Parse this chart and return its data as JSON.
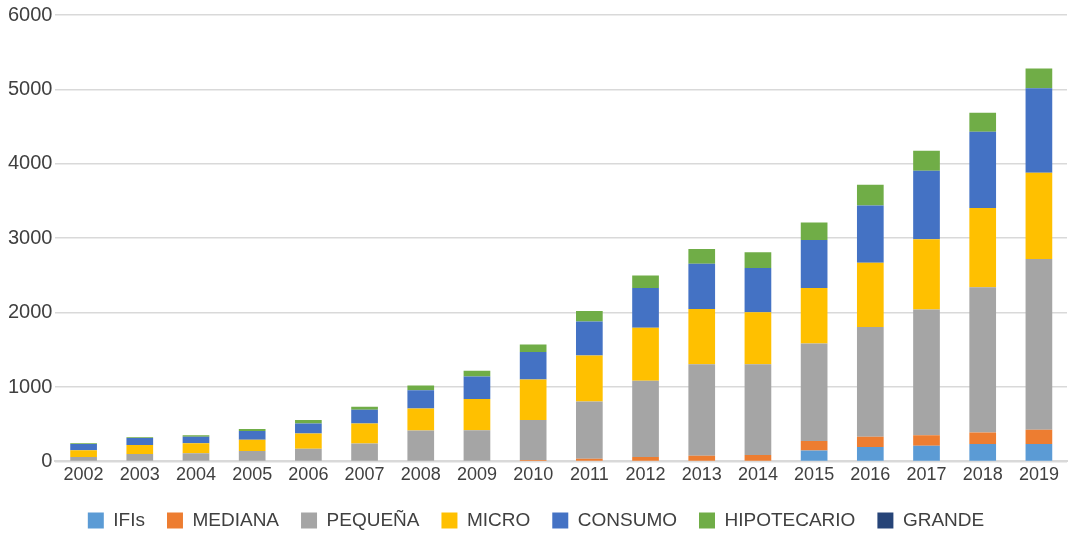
{
  "chart_data": {
    "type": "bar",
    "stacked": true,
    "categories": [
      "2002",
      "2003",
      "2004",
      "2005",
      "2006",
      "2007",
      "2008",
      "2009",
      "2010",
      "2011",
      "2012",
      "2013",
      "2014",
      "2015",
      "2016",
      "2017",
      "2018",
      "2019"
    ],
    "series": [
      {
        "name": "IFIs",
        "color": "#5b9bd5",
        "values": [
          0,
          0,
          0,
          0,
          0,
          0,
          0,
          0,
          0,
          0,
          0,
          0,
          0,
          145,
          195,
          210,
          235,
          235
        ]
      },
      {
        "name": "MEDIANA",
        "color": "#ed7d31",
        "values": [
          0,
          0,
          0,
          0,
          0,
          0,
          0,
          0,
          20,
          35,
          60,
          75,
          85,
          130,
          135,
          140,
          155,
          190
        ]
      },
      {
        "name": "PEQUEÑA",
        "color": "#a5a5a5",
        "values": [
          60,
          100,
          110,
          140,
          170,
          240,
          415,
          420,
          535,
          770,
          1025,
          1230,
          1220,
          1310,
          1475,
          1690,
          1950,
          2295
        ]
      },
      {
        "name": "MICRO",
        "color": "#ffc000",
        "values": [
          90,
          120,
          135,
          150,
          205,
          270,
          295,
          420,
          545,
          620,
          710,
          745,
          700,
          745,
          865,
          945,
          1065,
          1160
        ]
      },
      {
        "name": "CONSUMO",
        "color": "#4472c4",
        "values": [
          85,
          95,
          85,
          120,
          135,
          185,
          245,
          300,
          370,
          455,
          535,
          605,
          595,
          645,
          770,
          920,
          1025,
          1135
        ]
      },
      {
        "name": "HIPOTECARIO",
        "color": "#70ad47",
        "values": [
          10,
          10,
          20,
          25,
          45,
          40,
          65,
          80,
          100,
          140,
          170,
          200,
          210,
          235,
          280,
          270,
          255,
          265
        ]
      },
      {
        "name": "GRANDE",
        "color": "#264478",
        "values": [
          0,
          0,
          0,
          0,
          0,
          0,
          0,
          0,
          0,
          0,
          0,
          0,
          0,
          0,
          0,
          0,
          0,
          0
        ]
      }
    ],
    "ylim": [
      0,
      6000
    ],
    "yticks": [
      0,
      1000,
      2000,
      3000,
      4000,
      5000,
      6000
    ],
    "grid": "y",
    "legend": "bottom"
  }
}
